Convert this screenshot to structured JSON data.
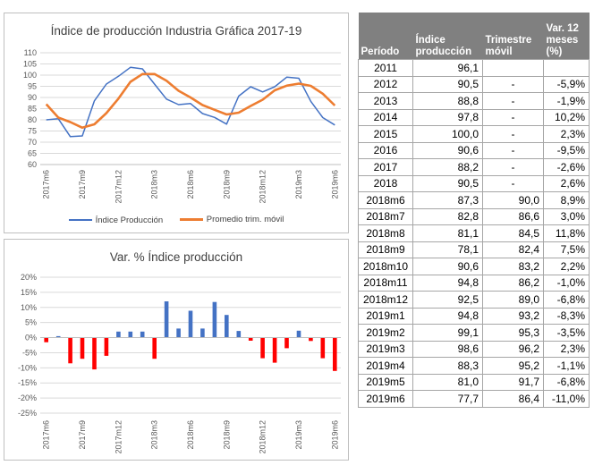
{
  "chart_data": [
    {
      "type": "line",
      "title": "Índice  de producción Industria Gráfica 2017-19",
      "x": [
        "2017m6",
        "2017m7",
        "2017m8",
        "2017m9",
        "2017m10",
        "2017m11",
        "2017m12",
        "2018m1",
        "2018m2",
        "2018m3",
        "2018m4",
        "2018m5",
        "2018m6",
        "2018m7",
        "2018m8",
        "2018m9",
        "2018m10",
        "2018m11",
        "2018m12",
        "2019m1",
        "2019m2",
        "2019m3",
        "2019m4",
        "2019m5",
        "2019m6"
      ],
      "x_tick_labels": [
        "2017m6",
        "2017m9",
        "2017m12",
        "2018m3",
        "2018m6",
        "2018m9",
        "2018m12",
        "2019m3",
        "2019m6"
      ],
      "ylim": [
        60,
        110
      ],
      "y_ticks": [
        "60",
        "65",
        "70",
        "75",
        "80",
        "85",
        "90",
        "95",
        "100",
        "105",
        "110"
      ],
      "grid": true,
      "legend": "bottom",
      "series": [
        {
          "name": "Índice Producción",
          "color": "#4472c4",
          "values": [
            80.0,
            80.5,
            72.5,
            72.8,
            88.5,
            96.0,
            99.5,
            103.5,
            102.8,
            96.0,
            89.3,
            86.8,
            87.3,
            82.8,
            81.1,
            78.1,
            90.6,
            94.8,
            92.5,
            94.8,
            99.1,
            98.6,
            88.3,
            81.0,
            77.7
          ]
        },
        {
          "name": "Promedio trim. móvil",
          "color": "#ed7d31",
          "values": [
            87.0,
            81.0,
            79.0,
            76.5,
            78.0,
            83.0,
            89.5,
            97.0,
            100.5,
            100.5,
            97.5,
            93.0,
            90.0,
            86.6,
            84.5,
            82.4,
            83.2,
            86.2,
            89.0,
            93.2,
            95.3,
            96.2,
            95.2,
            91.7,
            86.4
          ]
        }
      ]
    },
    {
      "type": "bar",
      "title": "Var. % Índice producción",
      "x": [
        "2017m6",
        "2017m7",
        "2017m8",
        "2017m9",
        "2017m10",
        "2017m11",
        "2017m12",
        "2018m1",
        "2018m2",
        "2018m3",
        "2018m4",
        "2018m5",
        "2018m6",
        "2018m7",
        "2018m8",
        "2018m9",
        "2018m10",
        "2018m11",
        "2018m12",
        "2019m1",
        "2019m2",
        "2019m3",
        "2019m4",
        "2019m5",
        "2019m6"
      ],
      "x_tick_labels": [
        "2017m6",
        "2017m9",
        "2017m12",
        "2018m3",
        "2018m6",
        "2018m9",
        "2018m12",
        "2019m3",
        "2019m6"
      ],
      "ylim": [
        -25,
        20
      ],
      "y_ticks": [
        "-25%",
        "-20%",
        "-15%",
        "-10%",
        "-5%",
        "0%",
        "5%",
        "10%",
        "15%",
        "20%"
      ],
      "grid": true,
      "series": [
        {
          "positive_color": "#4472c4",
          "negative_color": "#ff0000",
          "values": [
            -1.5,
            0.5,
            -8.5,
            -7.0,
            -10.5,
            -6.0,
            2.0,
            2.0,
            2.0,
            -7.0,
            12.0,
            3.0,
            8.9,
            3.0,
            11.8,
            7.5,
            2.2,
            -1.0,
            -6.8,
            -8.3,
            -3.5,
            2.3,
            -1.1,
            -6.8,
            -11.0
          ]
        }
      ]
    }
  ],
  "table": {
    "headers": {
      "period": "Período",
      "index": [
        "Índice",
        "producción"
      ],
      "trim": [
        "Trimestre",
        "móvil"
      ],
      "var": [
        "Var. 12",
        "meses",
        "(%)"
      ]
    },
    "rows": [
      {
        "period": "2011",
        "index": "96,1",
        "trim": "",
        "var": ""
      },
      {
        "period": "2012",
        "index": "90,5",
        "trim": "-",
        "var": "-5,9%"
      },
      {
        "period": "2013",
        "index": "88,8",
        "trim": "-",
        "var": "-1,9%"
      },
      {
        "period": "2014",
        "index": "97,8",
        "trim": "-",
        "var": "10,2%"
      },
      {
        "period": "2015",
        "index": "100,0",
        "trim": "-",
        "var": "2,3%"
      },
      {
        "period": "2016",
        "index": "90,6",
        "trim": "-",
        "var": "-9,5%"
      },
      {
        "period": "2017",
        "index": "88,2",
        "trim": "-",
        "var": "-2,6%"
      },
      {
        "period": "2018",
        "index": "90,5",
        "trim": "-",
        "var": "2,6%"
      },
      {
        "period": "2018m6",
        "index": "87,3",
        "trim": "90,0",
        "var": "8,9%"
      },
      {
        "period": "2018m7",
        "index": "82,8",
        "trim": "86,6",
        "var": "3,0%"
      },
      {
        "period": "2018m8",
        "index": "81,1",
        "trim": "84,5",
        "var": "11,8%"
      },
      {
        "period": "2018m9",
        "index": "78,1",
        "trim": "82,4",
        "var": "7,5%"
      },
      {
        "period": "2018m10",
        "index": "90,6",
        "trim": "83,2",
        "var": "2,2%"
      },
      {
        "period": "2018m11",
        "index": "94,8",
        "trim": "86,2",
        "var": "-1,0%"
      },
      {
        "period": "2018m12",
        "index": "92,5",
        "trim": "89,0",
        "var": "-6,8%"
      },
      {
        "period": "2019m1",
        "index": "94,8",
        "trim": "93,2",
        "var": "-8,3%"
      },
      {
        "period": "2019m2",
        "index": "99,1",
        "trim": "95,3",
        "var": "-3,5%"
      },
      {
        "period": "2019m3",
        "index": "98,6",
        "trim": "96,2",
        "var": "2,3%"
      },
      {
        "period": "2019m4",
        "index": "88,3",
        "trim": "95,2",
        "var": "-1,1%"
      },
      {
        "period": "2019m5",
        "index": "81,0",
        "trim": "91,7",
        "var": "-6,8%"
      },
      {
        "period": "2019m6",
        "index": "77,7",
        "trim": "86,4",
        "var": "-11,0%"
      }
    ]
  }
}
